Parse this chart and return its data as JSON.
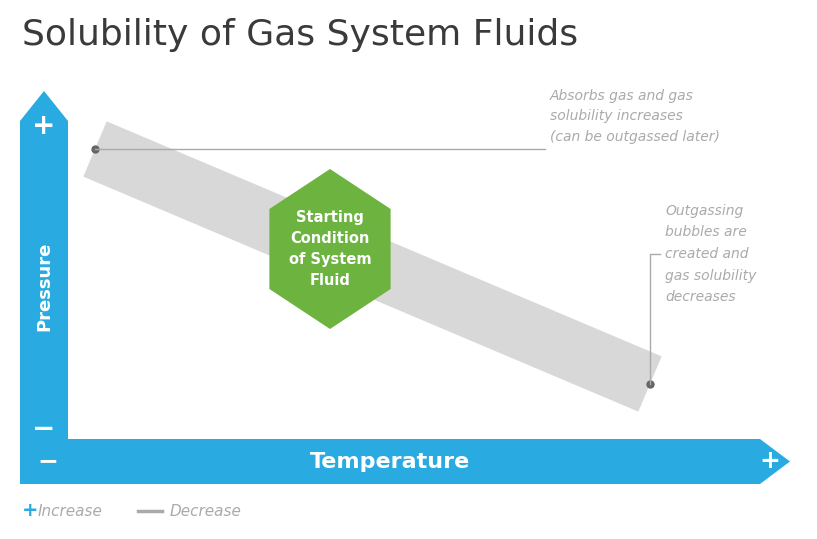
{
  "title": "Solubility of Gas System Fluids",
  "title_color": "#3a3a3a",
  "title_fontsize": 26,
  "background_color": "#ffffff",
  "axis_bar_color": "#29abe2",
  "pressure_label": "Pressure",
  "temperature_label": "Temperature",
  "plus_color": "#29abe2",
  "minus_color": "#aaaaaa",
  "band_color": "#d8d8d8",
  "dot_color": "#666666",
  "dot_size": 5,
  "hexagon_color": "#6db33f",
  "hexagon_text": "Starting\nCondition\nof System\nFluid",
  "hexagon_text_color": "#ffffff",
  "hexagon_fontsize": 10.5,
  "annotation1_text": "Absorbs gas and gas\nsolubility increases\n(can be outgassed later)",
  "annotation2_text": "Outgassing\nbubbles are\ncreated and\ngas solubility\ndecreases",
  "annotation_color": "#aaaaaa",
  "annotation_fontsize": 10,
  "legend_plus_text": "Increase",
  "legend_minus_text": "Decrease",
  "legend_fontsize": 11
}
